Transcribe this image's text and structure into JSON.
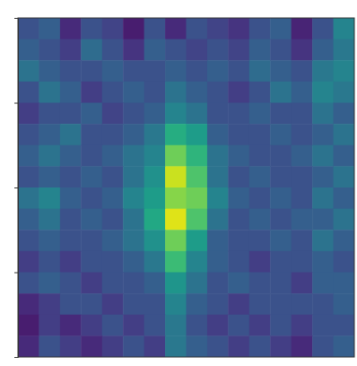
{
  "chart_data": {
    "type": "heatmap",
    "tick_labels": false,
    "xlim": [
      0,
      64
    ],
    "ylim": [
      0,
      64
    ],
    "yticks": [
      16,
      32,
      48
    ],
    "color_range": [
      0,
      1
    ],
    "cells": [
      [
        0.25,
        0.3,
        0.12,
        0.25,
        0.2,
        0.08,
        0.25,
        0.12,
        0.25,
        0.2,
        0.15,
        0.25,
        0.3,
        0.1,
        0.25,
        0.45
      ],
      [
        0.3,
        0.25,
        0.18,
        0.35,
        0.25,
        0.15,
        0.3,
        0.25,
        0.2,
        0.25,
        0.2,
        0.3,
        0.25,
        0.15,
        0.3,
        0.4
      ],
      [
        0.38,
        0.3,
        0.25,
        0.25,
        0.3,
        0.25,
        0.25,
        0.3,
        0.25,
        0.3,
        0.25,
        0.35,
        0.3,
        0.25,
        0.4,
        0.45
      ],
      [
        0.25,
        0.38,
        0.3,
        0.18,
        0.25,
        0.3,
        0.25,
        0.38,
        0.3,
        0.25,
        0.18,
        0.25,
        0.38,
        0.3,
        0.45,
        0.4
      ],
      [
        0.18,
        0.25,
        0.25,
        0.3,
        0.2,
        0.25,
        0.3,
        0.45,
        0.38,
        0.25,
        0.25,
        0.3,
        0.25,
        0.25,
        0.38,
        0.3
      ],
      [
        0.25,
        0.3,
        0.38,
        0.25,
        0.25,
        0.3,
        0.4,
        0.62,
        0.55,
        0.3,
        0.25,
        0.25,
        0.3,
        0.25,
        0.3,
        0.38
      ],
      [
        0.3,
        0.38,
        0.3,
        0.25,
        0.3,
        0.38,
        0.45,
        0.78,
        0.65,
        0.38,
        0.3,
        0.25,
        0.25,
        0.3,
        0.38,
        0.3
      ],
      [
        0.25,
        0.3,
        0.25,
        0.3,
        0.25,
        0.38,
        0.5,
        0.92,
        0.72,
        0.38,
        0.25,
        0.3,
        0.25,
        0.25,
        0.3,
        0.38
      ],
      [
        0.38,
        0.45,
        0.3,
        0.25,
        0.3,
        0.45,
        0.55,
        0.82,
        0.78,
        0.45,
        0.3,
        0.25,
        0.3,
        0.25,
        0.38,
        0.3
      ],
      [
        0.3,
        0.38,
        0.25,
        0.3,
        0.25,
        0.38,
        0.6,
        0.95,
        0.72,
        0.38,
        0.25,
        0.3,
        0.25,
        0.3,
        0.3,
        0.38
      ],
      [
        0.25,
        0.3,
        0.25,
        0.25,
        0.3,
        0.38,
        0.5,
        0.78,
        0.55,
        0.3,
        0.25,
        0.25,
        0.3,
        0.25,
        0.38,
        0.3
      ],
      [
        0.18,
        0.25,
        0.18,
        0.25,
        0.25,
        0.3,
        0.4,
        0.68,
        0.45,
        0.3,
        0.25,
        0.18,
        0.25,
        0.25,
        0.3,
        0.25
      ],
      [
        0.25,
        0.3,
        0.25,
        0.18,
        0.25,
        0.25,
        0.3,
        0.52,
        0.38,
        0.25,
        0.3,
        0.25,
        0.25,
        0.18,
        0.3,
        0.3
      ],
      [
        0.12,
        0.18,
        0.25,
        0.25,
        0.18,
        0.25,
        0.25,
        0.45,
        0.3,
        0.25,
        0.18,
        0.25,
        0.25,
        0.25,
        0.25,
        0.3
      ],
      [
        0.08,
        0.18,
        0.12,
        0.18,
        0.25,
        0.18,
        0.25,
        0.4,
        0.25,
        0.18,
        0.25,
        0.18,
        0.25,
        0.18,
        0.25,
        0.25
      ],
      [
        0.12,
        0.25,
        0.18,
        0.12,
        0.18,
        0.25,
        0.18,
        0.4,
        0.3,
        0.25,
        0.18,
        0.25,
        0.18,
        0.12,
        0.25,
        0.3
      ]
    ]
  }
}
